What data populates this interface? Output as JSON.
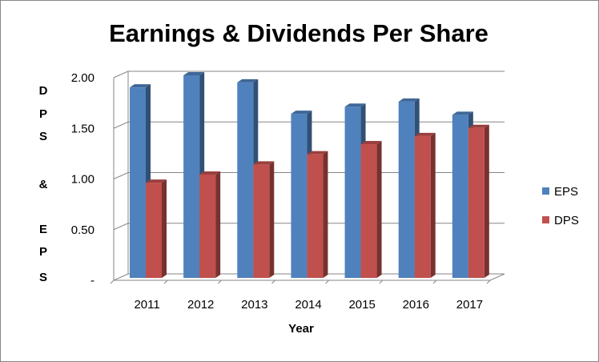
{
  "chart_data": {
    "type": "bar",
    "title": "Earnings & Dividends Per Share",
    "xlabel": "Year",
    "ylabel": "DPS & EPS",
    "categories": [
      "2011",
      "2012",
      "2013",
      "2014",
      "2015",
      "2016",
      "2017"
    ],
    "series": [
      {
        "name": "EPS",
        "color": "#4f81bd",
        "values": [
          1.88,
          2.0,
          1.93,
          1.62,
          1.69,
          1.74,
          1.61
        ]
      },
      {
        "name": "DPS",
        "color": "#c0504d",
        "values": [
          0.94,
          1.02,
          1.12,
          1.22,
          1.32,
          1.4,
          1.48
        ]
      }
    ],
    "y_ticks": [
      "-",
      "0.50",
      "1.00",
      "1.50",
      "2.00"
    ],
    "ylim": [
      0,
      2
    ],
    "grid": true,
    "legend_position": "right"
  }
}
